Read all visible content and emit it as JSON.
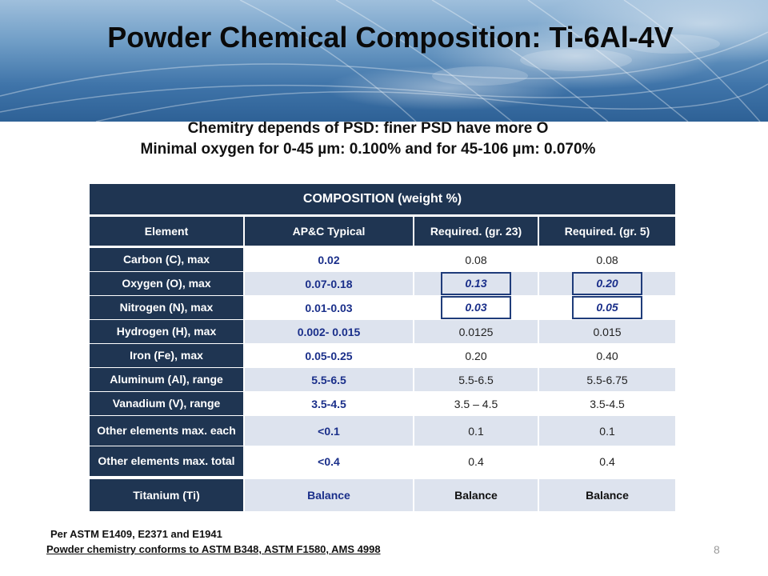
{
  "slide": {
    "title": "Powder Chemical Composition: Ti-6Al-4V",
    "subtitle_line1": "Chemitry depends of PSD: finer PSD have more O",
    "subtitle_line2": "Minimal oxygen for 0-45 µm: 0.100% and for 45-106 µm: 0.070%",
    "note_line1": "Per ASTM E1409, E2371 and E1941",
    "note_line2": "Powder chemistry conforms to ASTM B348, ASTM F1580, AMS 4998",
    "page_number": "8"
  },
  "table": {
    "caption": "COMPOSITION  (weight %)",
    "columns": [
      "Element",
      "AP&C Typical",
      "Required. (gr. 23)",
      "Required. (gr. 5)"
    ],
    "rows": [
      {
        "element": "Carbon (C), max",
        "typical": "0.02",
        "gr23": "0.08",
        "gr5": "0.08"
      },
      {
        "element": "Oxygen (O), max",
        "typical": "0.07-0.18",
        "gr23": "0.13",
        "gr5": "0.20"
      },
      {
        "element": "Nitrogen (N), max",
        "typical": "0.01-0.03",
        "gr23": "0.03",
        "gr5": "0.05"
      },
      {
        "element": "Hydrogen (H), max",
        "typical": "0.002- 0.015",
        "gr23": "0.0125",
        "gr5": "0.015"
      },
      {
        "element": "Iron (Fe), max",
        "typical": "0.05-0.25",
        "gr23": "0.20",
        "gr5": "0.40"
      },
      {
        "element": "Aluminum (Al), range",
        "typical": "5.5-6.5",
        "gr23": "5.5-6.5",
        "gr5": "5.5-6.75"
      },
      {
        "element": "Vanadium (V), range",
        "typical": "3.5-4.5",
        "gr23": "3.5 – 4.5",
        "gr5": "3.5-4.5"
      },
      {
        "element": "Other elements max. each",
        "typical": "<0.1",
        "gr23": "0.1",
        "gr5": "0.1"
      },
      {
        "element": "Other elements max. total",
        "typical": "<0.4",
        "gr23": "0.4",
        "gr5": "0.4"
      },
      {
        "element": "Titanium (Ti)",
        "typical": "Balance",
        "gr23": "Balance",
        "gr5": "Balance"
      }
    ]
  },
  "colors": {
    "header_navy": "#1f3552",
    "typical_blue": "#1a2f8a",
    "row_shade": "#dde3ee"
  }
}
